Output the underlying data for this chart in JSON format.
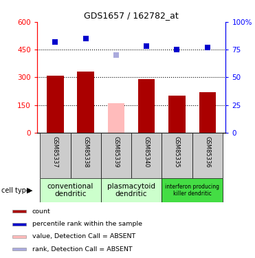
{
  "title": "GDS1657 / 162782_at",
  "samples": [
    "GSM85337",
    "GSM85338",
    "GSM85339",
    "GSM85340",
    "GSM85335",
    "GSM85336"
  ],
  "bar_values": [
    310,
    330,
    160,
    290,
    200,
    220
  ],
  "bar_colors": [
    "#aa0000",
    "#aa0000",
    "#ffbbbb",
    "#aa0000",
    "#aa0000",
    "#aa0000"
  ],
  "rank_values": [
    82,
    85,
    70,
    78,
    75,
    77
  ],
  "rank_colors": [
    "#0000cc",
    "#0000cc",
    "#aaaadd",
    "#0000cc",
    "#0000cc",
    "#0000cc"
  ],
  "ylim_left": [
    0,
    600
  ],
  "ylim_right": [
    0,
    100
  ],
  "yticks_left": [
    0,
    150,
    300,
    450,
    600
  ],
  "ytick_labels_left": [
    "0",
    "150",
    "300",
    "450",
    "600"
  ],
  "yticks_right": [
    0,
    25,
    50,
    75,
    100
  ],
  "ytick_labels_right": [
    "0",
    "25",
    "50",
    "75",
    "100%"
  ],
  "groups": [
    {
      "label": "conventional\ndendritic",
      "indices": [
        0,
        1
      ],
      "color": "#ccffcc"
    },
    {
      "label": "plasmacytoid\ndendritic",
      "indices": [
        2,
        3
      ],
      "color": "#ccffcc"
    },
    {
      "label": "interferon producing\nkiller dendritic",
      "indices": [
        4,
        5
      ],
      "color": "#44dd44"
    }
  ],
  "cell_type_label": "cell type",
  "legend_items": [
    {
      "color": "#aa0000",
      "label": "count"
    },
    {
      "color": "#0000cc",
      "label": "percentile rank within the sample"
    },
    {
      "color": "#ffbbbb",
      "label": "value, Detection Call = ABSENT"
    },
    {
      "color": "#aaaadd",
      "label": "rank, Detection Call = ABSENT"
    }
  ],
  "bar_width": 0.55,
  "sample_box_color": "#cccccc",
  "plot_bg": "#ffffff",
  "fig_bg": "#ffffff"
}
